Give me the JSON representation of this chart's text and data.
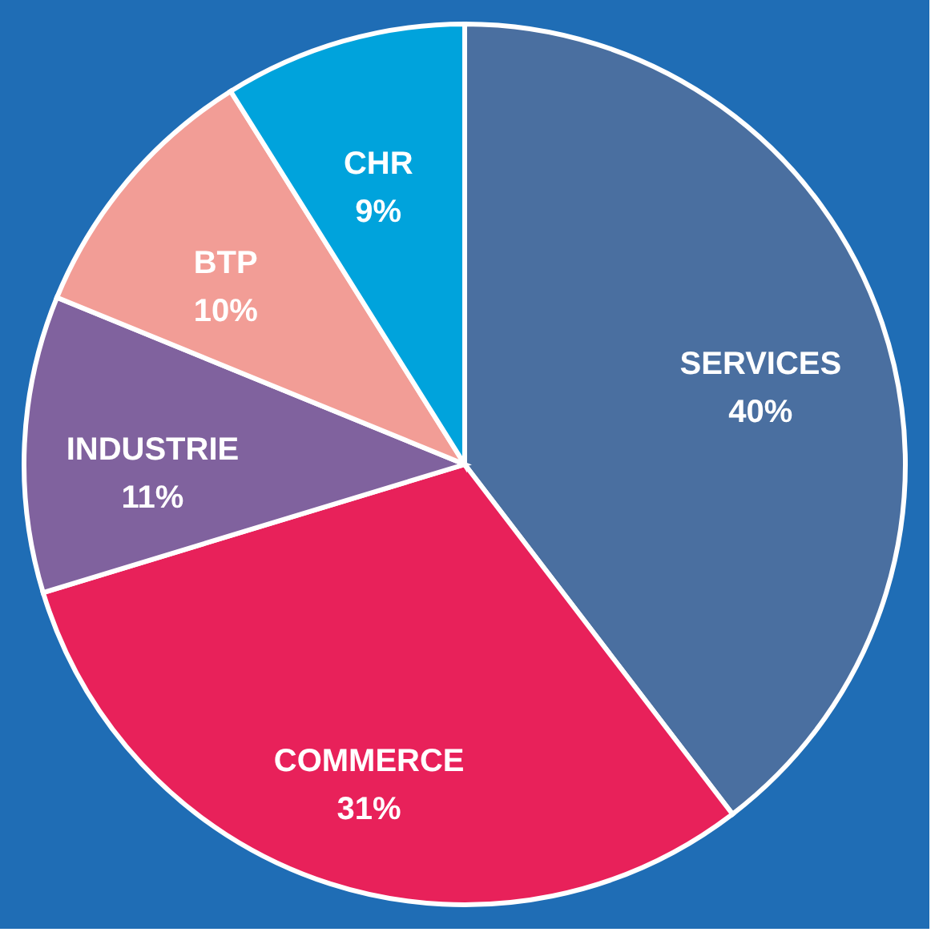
{
  "chart_data": {
    "type": "pie",
    "categories": [
      "SERVICES",
      "COMMERCE",
      "INDUSTRIE",
      "BTP",
      "CHR"
    ],
    "values": [
      40,
      31,
      11,
      10,
      9
    ],
    "value_labels": [
      "40%",
      "31%",
      "11%",
      "10%",
      "9%"
    ],
    "colors": [
      "#4a6fa0",
      "#e8215a",
      "#80629e",
      "#f29d96",
      "#00a3dc"
    ],
    "legend": false
  }
}
